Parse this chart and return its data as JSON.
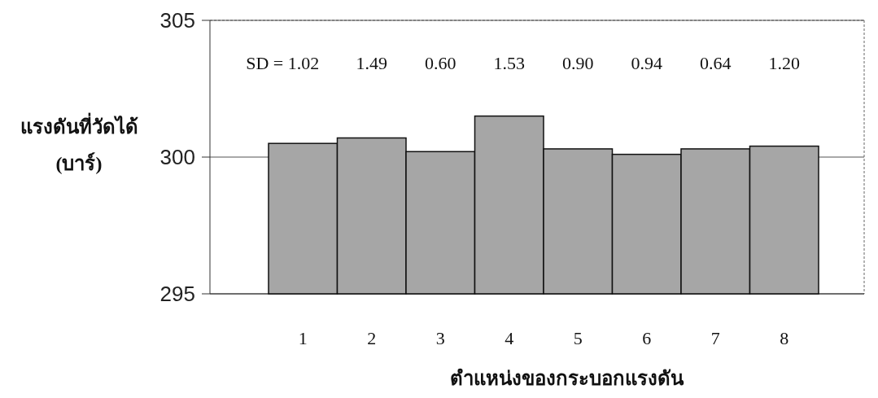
{
  "chart_data": {
    "type": "bar",
    "xlabel": "ตำแหน่งของกระบอกแรงดัน",
    "ylabel": "แรงดันที่วัดได้\n(บาร์)",
    "categories": [
      "1",
      "2",
      "3",
      "4",
      "5",
      "6",
      "7",
      "8"
    ],
    "values": [
      300.5,
      300.7,
      300.2,
      301.5,
      300.3,
      300.1,
      300.3,
      300.4
    ],
    "color": "#a6a6a6",
    "ylim": [
      295,
      305
    ],
    "yticks": [
      295,
      300,
      305
    ],
    "grid": "y",
    "annotations": [
      "SD = 1.02",
      "1.49",
      "0.60",
      "1.53",
      "0.90",
      "0.94",
      "0.64",
      "1.20"
    ]
  }
}
